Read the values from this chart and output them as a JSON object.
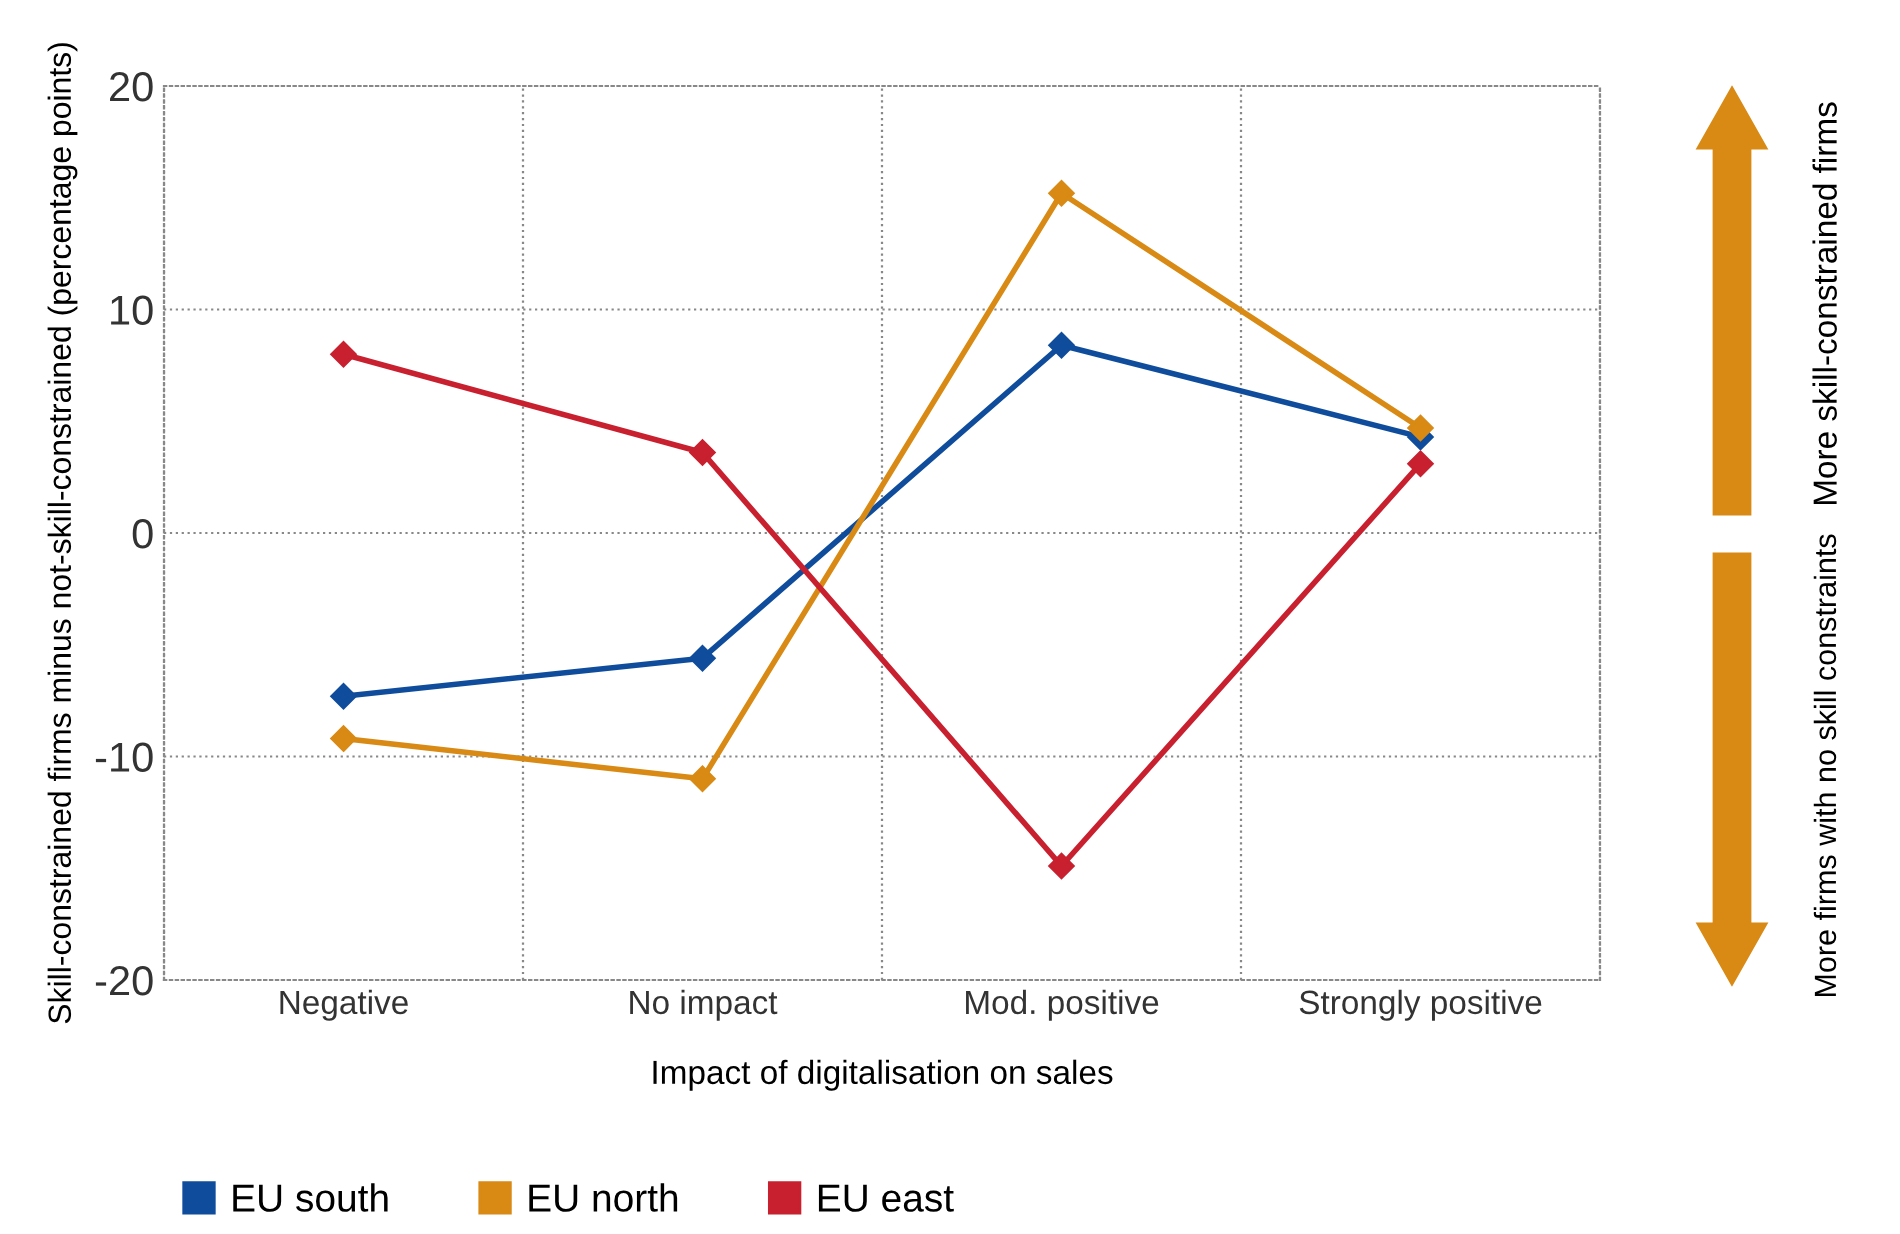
{
  "chart_data": {
    "type": "line",
    "xlabel": "Impact of digitalisation on sales",
    "ylabel": "Skill-constrained firms minus not-skill-constrained (percentage points)",
    "categories": [
      "Negative",
      "No impact",
      "Mod. positive",
      "Strongly positive"
    ],
    "series": [
      {
        "name": "EU south",
        "color": "#0f4d9c",
        "values": [
          -7.3,
          -5.6,
          8.4,
          4.3
        ]
      },
      {
        "name": "EU north",
        "color": "#d98a14",
        "values": [
          -9.2,
          -11.0,
          15.2,
          4.7
        ]
      },
      {
        "name": "EU east",
        "color": "#c8202f",
        "values": [
          8.0,
          3.6,
          -14.9,
          3.1
        ]
      }
    ],
    "ylim": [
      -20,
      20
    ],
    "yticks": [
      -20,
      -10,
      0,
      10,
      20
    ],
    "grid": true,
    "legend": "bottom left",
    "marker": "diamond",
    "line_style": "solid",
    "annotations": [
      "More skill-constrained firms",
      "More firms with no skill constraints"
    ]
  }
}
